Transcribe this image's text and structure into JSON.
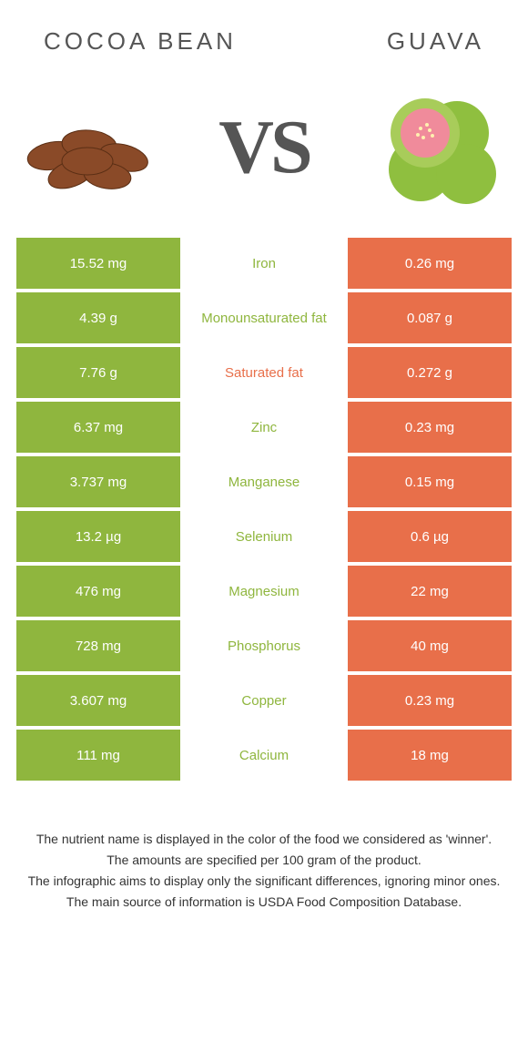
{
  "colors": {
    "left": "#8fb63e",
    "right": "#e86f4a",
    "mid_left_text": "#8fb63e",
    "mid_right_text": "#e86f4a"
  },
  "header": {
    "left_title": "COCOA BEAN",
    "right_title": "GUAVA",
    "vs": "VS"
  },
  "rows": [
    {
      "left": "15.52 mg",
      "mid": "Iron",
      "right": "0.26 mg",
      "winner": "left"
    },
    {
      "left": "4.39 g",
      "mid": "Monounsaturated fat",
      "right": "0.087 g",
      "winner": "left"
    },
    {
      "left": "7.76 g",
      "mid": "Saturated fat",
      "right": "0.272 g",
      "winner": "right"
    },
    {
      "left": "6.37 mg",
      "mid": "Zinc",
      "right": "0.23 mg",
      "winner": "left"
    },
    {
      "left": "3.737 mg",
      "mid": "Manganese",
      "right": "0.15 mg",
      "winner": "left"
    },
    {
      "left": "13.2 µg",
      "mid": "Selenium",
      "right": "0.6 µg",
      "winner": "left"
    },
    {
      "left": "476 mg",
      "mid": "Magnesium",
      "right": "22 mg",
      "winner": "left"
    },
    {
      "left": "728 mg",
      "mid": "Phosphorus",
      "right": "40 mg",
      "winner": "left"
    },
    {
      "left": "3.607 mg",
      "mid": "Copper",
      "right": "0.23 mg",
      "winner": "left"
    },
    {
      "left": "111 mg",
      "mid": "Calcium",
      "right": "18 mg",
      "winner": "left"
    }
  ],
  "footer": [
    "The nutrient name is displayed in the color of the food we considered as 'winner'.",
    "The amounts are specified per 100 gram of the product.",
    "The infographic aims to display only the significant differences, ignoring minor ones.",
    "The main source of information is USDA Food Composition Database."
  ]
}
